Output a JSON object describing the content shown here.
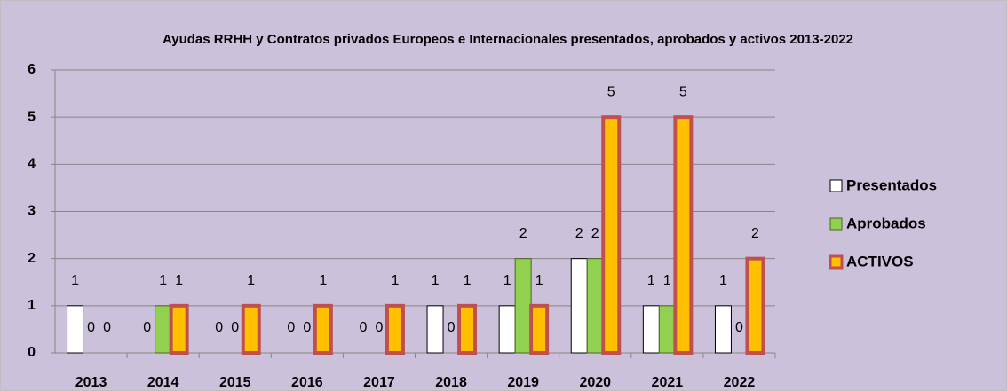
{
  "chart_data": {
    "type": "bar",
    "title": "Ayudas RRHH y Contratos privados Europeos e Internacionales presentados, aprobados y activos 2013-2022",
    "categories": [
      "2013",
      "2014",
      "2015",
      "2016",
      "2017",
      "2018",
      "2019",
      "2020",
      "2021",
      "2022"
    ],
    "series": [
      {
        "name": "Presentados",
        "color": "#ffffff",
        "values": [
          1,
          0,
          0,
          0,
          0,
          1,
          1,
          2,
          1,
          1
        ]
      },
      {
        "name": "Aprobados",
        "color": "#92d050",
        "values": [
          0,
          1,
          0,
          0,
          0,
          0,
          2,
          2,
          1,
          0
        ]
      },
      {
        "name": "ACTIVOS",
        "color": "#ffc000",
        "values": [
          0,
          1,
          1,
          1,
          1,
          1,
          1,
          5,
          5,
          2
        ]
      }
    ],
    "ylim": [
      0,
      6
    ],
    "yticks": [
      0,
      1,
      2,
      3,
      4,
      5,
      6
    ],
    "grid": true,
    "legend": "right"
  }
}
